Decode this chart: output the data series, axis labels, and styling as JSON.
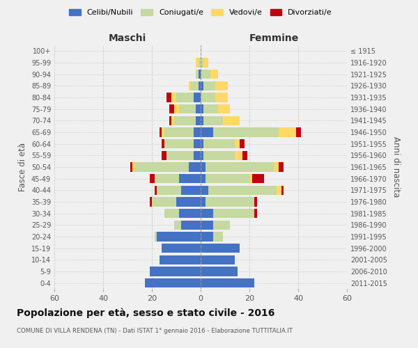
{
  "age_groups": [
    "0-4",
    "5-9",
    "10-14",
    "15-19",
    "20-24",
    "25-29",
    "30-34",
    "35-39",
    "40-44",
    "45-49",
    "50-54",
    "55-59",
    "60-64",
    "65-69",
    "70-74",
    "75-79",
    "80-84",
    "85-89",
    "90-94",
    "95-99",
    "100+"
  ],
  "birth_years": [
    "2011-2015",
    "2006-2010",
    "2001-2005",
    "1996-2000",
    "1991-1995",
    "1986-1990",
    "1981-1985",
    "1976-1980",
    "1971-1975",
    "1966-1970",
    "1961-1965",
    "1956-1960",
    "1951-1955",
    "1946-1950",
    "1941-1945",
    "1936-1940",
    "1931-1935",
    "1926-1930",
    "1921-1925",
    "1916-1920",
    "≤ 1915"
  ],
  "males": {
    "celibe": [
      23,
      21,
      17,
      16,
      18,
      8,
      9,
      10,
      8,
      9,
      5,
      3,
      3,
      3,
      2,
      2,
      3,
      1,
      1,
      0,
      0
    ],
    "coniugato": [
      0,
      0,
      0,
      0,
      1,
      3,
      6,
      10,
      10,
      10,
      22,
      11,
      12,
      12,
      9,
      7,
      7,
      3,
      1,
      1,
      0
    ],
    "vedovo": [
      0,
      0,
      0,
      0,
      0,
      0,
      0,
      0,
      0,
      0,
      1,
      0,
      0,
      1,
      1,
      2,
      2,
      1,
      0,
      1,
      0
    ],
    "divorziato": [
      0,
      0,
      0,
      0,
      0,
      0,
      0,
      1,
      1,
      2,
      1,
      2,
      1,
      1,
      1,
      2,
      2,
      0,
      0,
      0,
      0
    ]
  },
  "females": {
    "nubile": [
      22,
      15,
      14,
      16,
      5,
      5,
      5,
      2,
      3,
      2,
      2,
      1,
      1,
      5,
      1,
      1,
      0,
      1,
      0,
      0,
      0
    ],
    "coniugata": [
      0,
      0,
      0,
      0,
      4,
      7,
      17,
      20,
      28,
      18,
      28,
      13,
      13,
      27,
      8,
      6,
      6,
      5,
      4,
      1,
      0
    ],
    "vedova": [
      0,
      0,
      0,
      0,
      0,
      0,
      0,
      0,
      2,
      1,
      2,
      3,
      2,
      7,
      7,
      5,
      5,
      5,
      3,
      2,
      0
    ],
    "divorziata": [
      0,
      0,
      0,
      0,
      0,
      0,
      1,
      1,
      1,
      5,
      2,
      2,
      2,
      2,
      0,
      0,
      0,
      0,
      0,
      0,
      0
    ]
  },
  "colors": {
    "celibe": "#4472C4",
    "coniugato": "#C5D9A0",
    "vedovo": "#FFD966",
    "divorziato": "#C0000C"
  },
  "xlim": 60,
  "title": "Popolazione per età, sesso e stato civile - 2016",
  "subtitle": "COMUNE DI VILLA RENDENA (TN) - Dati ISTAT 1° gennaio 2016 - Elaborazione TUTTITALIA.IT",
  "ylabel_left": "Fasce di età",
  "ylabel_right": "Anni di nascita",
  "legend_labels": [
    "Celibi/Nubili",
    "Coniugati/e",
    "Vedovi/e",
    "Divorziati/e"
  ],
  "bg_color": "#f0f0f0"
}
